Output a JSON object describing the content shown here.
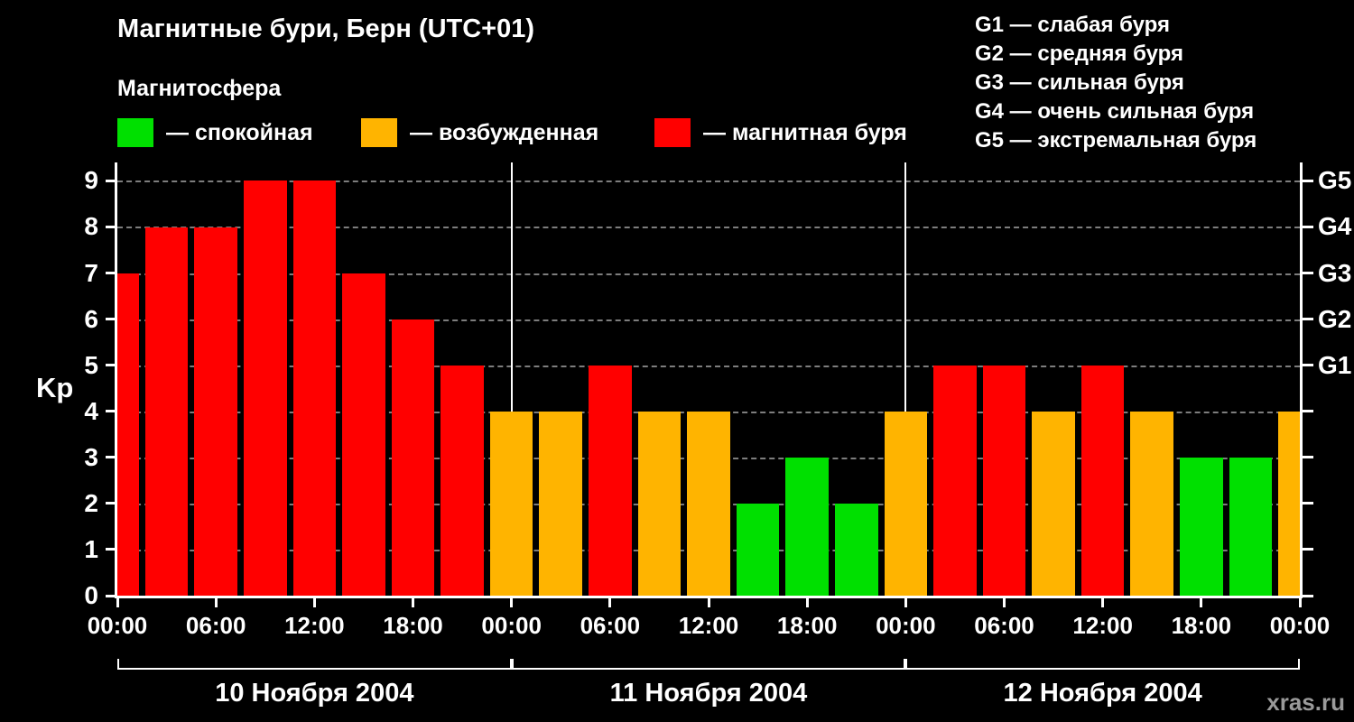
{
  "header": {
    "title": "Магнитные бури, Берн (UTC+01)",
    "subtitle": "Магнитосфера",
    "legend": [
      {
        "label": "— спокойная",
        "color": "#00e000"
      },
      {
        "label": "— возбужденная",
        "color": "#ffb400"
      },
      {
        "label": "— магнитная буря",
        "color": "#ff0000"
      }
    ],
    "g_scale": [
      "G1 — слабая буря",
      "G2 — средняя буря",
      "G3 — сильная буря",
      "G4 — очень сильная буря",
      "G5 — экстремальная буря"
    ]
  },
  "chart_data": {
    "type": "bar",
    "title": "Магнитные бури, Берн (UTC+01)",
    "ylabel": "Kp",
    "ylim": [
      0,
      9.4
    ],
    "yticks": [
      0,
      1,
      2,
      3,
      4,
      5,
      6,
      7,
      8,
      9
    ],
    "x_tick_labels": [
      "00:00",
      "06:00",
      "12:00",
      "18:00",
      "00:00",
      "06:00",
      "12:00",
      "18:00",
      "00:00",
      "06:00",
      "12:00",
      "18:00",
      "00:00"
    ],
    "days": [
      "10 Ноября 2004",
      "11 Ноября 2004",
      "12 Ноября 2004"
    ],
    "interval_hours": 3,
    "values": [
      7,
      8,
      8,
      9,
      9,
      7,
      6,
      5,
      4,
      4,
      5,
      4,
      4,
      2,
      3,
      2,
      4,
      5,
      5,
      4,
      5,
      4,
      3,
      3,
      4
    ],
    "colors": {
      "quiet": "#00e000",
      "excited": "#ffb400",
      "storm": "#ff0000"
    },
    "color_rule": {
      "quiet_kp_max": 3,
      "excited_kp": 4,
      "storm_kp_min": 5
    },
    "right_axis": [
      {
        "label": "G1",
        "kp": 5
      },
      {
        "label": "G2",
        "kp": 6
      },
      {
        "label": "G3",
        "kp": 7
      },
      {
        "label": "G4",
        "kp": 8
      },
      {
        "label": "G5",
        "kp": 9
      }
    ],
    "grid": "horizontal-dashed",
    "legend_position": "top"
  },
  "watermark": "xras.ru"
}
